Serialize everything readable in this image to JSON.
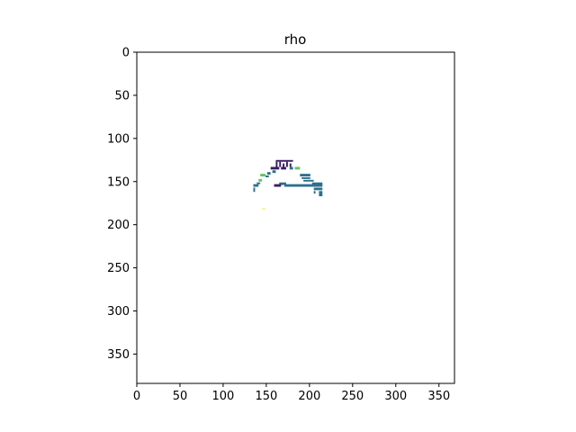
{
  "chart_data": {
    "type": "heatmap",
    "title": "rho",
    "xlabel": "",
    "ylabel": "",
    "xlim": [
      0,
      368
    ],
    "ylim": [
      384,
      0
    ],
    "x_ticks": [
      0,
      50,
      100,
      150,
      200,
      250,
      300,
      350
    ],
    "y_ticks": [
      0,
      50,
      100,
      150,
      200,
      250,
      300,
      350
    ],
    "grid": false,
    "colormap": "viridis",
    "background_color": "#ffffff",
    "cell_size": 2,
    "cells": [
      {
        "x": 161,
        "y": 125,
        "w": 20,
        "h": 2,
        "color": "#3b1c63"
      },
      {
        "x": 161,
        "y": 127,
        "w": 2,
        "h": 8,
        "color": "#3b1c63"
      },
      {
        "x": 165,
        "y": 127,
        "w": 2,
        "h": 6,
        "color": "#3b1c63"
      },
      {
        "x": 169,
        "y": 129,
        "w": 2,
        "h": 4,
        "color": "#3b1c63"
      },
      {
        "x": 173,
        "y": 127,
        "w": 2,
        "h": 6,
        "color": "#3b1c63"
      },
      {
        "x": 177,
        "y": 129,
        "w": 2,
        "h": 4,
        "color": "#3b1c63"
      },
      {
        "x": 155,
        "y": 133,
        "w": 10,
        "h": 3,
        "color": "#3b1c63"
      },
      {
        "x": 167,
        "y": 133,
        "w": 6,
        "h": 3,
        "color": "#3b1c63"
      },
      {
        "x": 157,
        "y": 137,
        "w": 4,
        "h": 3,
        "color": "#2d6f8e"
      },
      {
        "x": 151,
        "y": 139,
        "w": 4,
        "h": 3,
        "color": "#2d6f8e"
      },
      {
        "x": 177,
        "y": 133,
        "w": 4,
        "h": 3,
        "color": "#2d6f8e"
      },
      {
        "x": 183,
        "y": 133,
        "w": 6,
        "h": 3,
        "color": "#5cc863"
      },
      {
        "x": 189,
        "y": 141,
        "w": 12,
        "h": 3,
        "color": "#2d6f8e"
      },
      {
        "x": 191,
        "y": 145,
        "w": 10,
        "h": 2,
        "color": "#2d6f8e"
      },
      {
        "x": 193,
        "y": 148,
        "w": 12,
        "h": 2,
        "color": "#2d6f8e"
      },
      {
        "x": 143,
        "y": 141,
        "w": 6,
        "h": 3,
        "color": "#5cc863"
      },
      {
        "x": 149,
        "y": 143,
        "w": 4,
        "h": 2,
        "color": "#2d6f8e"
      },
      {
        "x": 141,
        "y": 147,
        "w": 4,
        "h": 3,
        "color": "#5cc863"
      },
      {
        "x": 139,
        "y": 151,
        "w": 4,
        "h": 2,
        "color": "#2d6f8e"
      },
      {
        "x": 135,
        "y": 153,
        "w": 6,
        "h": 3,
        "color": "#2d6f8e"
      },
      {
        "x": 135,
        "y": 157,
        "w": 2,
        "h": 5,
        "color": "#2d6f8e"
      },
      {
        "x": 165,
        "y": 151,
        "w": 8,
        "h": 3,
        "color": "#2d6f8e"
      },
      {
        "x": 159,
        "y": 153,
        "w": 8,
        "h": 3,
        "color": "#3b1c63"
      },
      {
        "x": 171,
        "y": 153,
        "w": 44,
        "h": 3,
        "color": "#2d6f8e"
      },
      {
        "x": 203,
        "y": 151,
        "w": 12,
        "h": 3,
        "color": "#2d6f8e"
      },
      {
        "x": 205,
        "y": 157,
        "w": 10,
        "h": 3,
        "color": "#2d6f8e"
      },
      {
        "x": 211,
        "y": 161,
        "w": 4,
        "h": 6,
        "color": "#2d6f8e"
      },
      {
        "x": 205,
        "y": 161,
        "w": 2,
        "h": 3,
        "color": "#2d6f8e"
      },
      {
        "x": 145,
        "y": 181,
        "w": 4,
        "h": 1,
        "color": "#f5e93a"
      }
    ]
  }
}
